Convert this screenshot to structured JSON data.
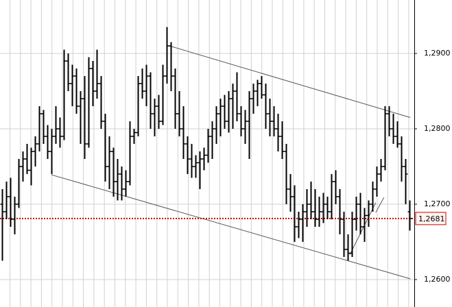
{
  "chart_data": {
    "type": "ohlc",
    "ylim": [
      1.25636,
      1.29709
    ],
    "yticks": [
      {
        "value": 1.26,
        "label": "1,2600"
      },
      {
        "value": 1.27,
        "label": "1,2700"
      },
      {
        "value": 1.28,
        "label": "1,2800"
      },
      {
        "value": 1.29,
        "label": "1,2900"
      }
    ],
    "grid": true,
    "color": "#000000",
    "ohlc": [
      [
        1.27,
        1.272,
        1.2625,
        1.269
      ],
      [
        1.269,
        1.273,
        1.268,
        1.271
      ],
      [
        1.271,
        1.2735,
        1.267,
        1.268
      ],
      [
        1.268,
        1.271,
        1.266,
        1.27
      ],
      [
        1.27,
        1.276,
        1.2695,
        1.275
      ],
      [
        1.275,
        1.277,
        1.273,
        1.276
      ],
      [
        1.276,
        1.278,
        1.274,
        1.2745
      ],
      [
        1.2745,
        1.2775,
        1.2725,
        1.277
      ],
      [
        1.277,
        1.279,
        1.275,
        1.278
      ],
      [
        1.278,
        1.283,
        1.277,
        1.282
      ],
      [
        1.282,
        1.2825,
        1.278,
        1.279
      ],
      [
        1.279,
        1.2805,
        1.276,
        1.277
      ],
      [
        1.277,
        1.28,
        1.274,
        1.279
      ],
      [
        1.279,
        1.283,
        1.278,
        1.28
      ],
      [
        1.28,
        1.2815,
        1.2775,
        1.279
      ],
      [
        1.279,
        1.2905,
        1.2785,
        1.289
      ],
      [
        1.289,
        1.29,
        1.285,
        1.286
      ],
      [
        1.286,
        1.2885,
        1.283,
        1.287
      ],
      [
        1.287,
        1.288,
        1.282,
        1.283
      ],
      [
        1.283,
        1.285,
        1.278,
        1.284
      ],
      [
        1.284,
        1.287,
        1.276,
        1.278
      ],
      [
        1.278,
        1.2895,
        1.2775,
        1.288
      ],
      [
        1.288,
        1.289,
        1.283,
        1.285
      ],
      [
        1.285,
        1.2905,
        1.284,
        1.286
      ],
      [
        1.286,
        1.287,
        1.28,
        1.281
      ],
      [
        1.281,
        1.282,
        1.273,
        1.275
      ],
      [
        1.275,
        1.279,
        1.272,
        1.277
      ],
      [
        1.277,
        1.2775,
        1.271,
        1.273
      ],
      [
        1.273,
        1.276,
        1.2705,
        1.274
      ],
      [
        1.274,
        1.275,
        1.2705,
        1.272
      ],
      [
        1.272,
        1.2745,
        1.271,
        1.273
      ],
      [
        1.273,
        1.281,
        1.2725,
        1.279
      ],
      [
        1.279,
        1.28,
        1.278,
        1.2795
      ],
      [
        1.2795,
        1.287,
        1.279,
        1.286
      ],
      [
        1.286,
        1.288,
        1.284,
        1.285
      ],
      [
        1.285,
        1.2885,
        1.283,
        1.287
      ],
      [
        1.287,
        1.2875,
        1.28,
        1.282
      ],
      [
        1.282,
        1.284,
        1.279,
        1.283
      ],
      [
        1.283,
        1.2845,
        1.28,
        1.281
      ],
      [
        1.281,
        1.2885,
        1.2805,
        1.287
      ],
      [
        1.287,
        1.2935,
        1.286,
        1.291
      ],
      [
        1.291,
        1.2915,
        1.285,
        1.287
      ],
      [
        1.287,
        1.288,
        1.28,
        1.282
      ],
      [
        1.282,
        1.285,
        1.279,
        1.28
      ],
      [
        1.28,
        1.283,
        1.276,
        1.278
      ],
      [
        1.278,
        1.279,
        1.274,
        1.276
      ],
      [
        1.276,
        1.278,
        1.2735,
        1.275
      ],
      [
        1.275,
        1.2765,
        1.2735,
        1.2755
      ],
      [
        1.2755,
        1.277,
        1.272,
        1.276
      ],
      [
        1.276,
        1.2775,
        1.2745,
        1.2765
      ],
      [
        1.2765,
        1.28,
        1.2755,
        1.279
      ],
      [
        1.279,
        1.281,
        1.276,
        1.28
      ],
      [
        1.28,
        1.283,
        1.278,
        1.282
      ],
      [
        1.282,
        1.284,
        1.279,
        1.283
      ],
      [
        1.283,
        1.2845,
        1.28,
        1.281
      ],
      [
        1.281,
        1.285,
        1.2795,
        1.284
      ],
      [
        1.284,
        1.286,
        1.28,
        1.285
      ],
      [
        1.285,
        1.2875,
        1.281,
        1.282
      ],
      [
        1.282,
        1.283,
        1.279,
        1.28
      ],
      [
        1.28,
        1.2825,
        1.278,
        1.281
      ],
      [
        1.281,
        1.285,
        1.276,
        1.284
      ],
      [
        1.284,
        1.286,
        1.282,
        1.285
      ],
      [
        1.285,
        1.2865,
        1.283,
        1.286
      ],
      [
        1.286,
        1.287,
        1.284,
        1.2845
      ],
      [
        1.2845,
        1.286,
        1.28,
        1.282
      ],
      [
        1.282,
        1.284,
        1.279,
        1.281
      ],
      [
        1.281,
        1.283,
        1.279,
        1.28
      ],
      [
        1.28,
        1.282,
        1.277,
        1.279
      ],
      [
        1.279,
        1.281,
        1.276,
        1.277
      ],
      [
        1.277,
        1.278,
        1.27,
        1.272
      ],
      [
        1.272,
        1.274,
        1.269,
        1.271
      ],
      [
        1.271,
        1.2725,
        1.265,
        1.267
      ],
      [
        1.267,
        1.269,
        1.2655,
        1.268
      ],
      [
        1.268,
        1.27,
        1.265,
        1.269
      ],
      [
        1.269,
        1.272,
        1.267,
        1.27
      ],
      [
        1.27,
        1.273,
        1.268,
        1.269
      ],
      [
        1.269,
        1.272,
        1.267,
        1.268
      ],
      [
        1.268,
        1.271,
        1.267,
        1.269
      ],
      [
        1.269,
        1.2715,
        1.2675,
        1.27
      ],
      [
        1.27,
        1.271,
        1.268,
        1.269
      ],
      [
        1.269,
        1.274,
        1.268,
        1.273
      ],
      [
        1.273,
        1.2745,
        1.27,
        1.271
      ],
      [
        1.271,
        1.272,
        1.266,
        1.268
      ],
      [
        1.268,
        1.269,
        1.263,
        1.264
      ],
      [
        1.264,
        1.266,
        1.2625,
        1.2635
      ],
      [
        1.2635,
        1.269,
        1.263,
        1.268
      ],
      [
        1.268,
        1.271,
        1.2665,
        1.27
      ],
      [
        1.27,
        1.2715,
        1.266,
        1.267
      ],
      [
        1.267,
        1.2695,
        1.265,
        1.2685
      ],
      [
        1.2685,
        1.2705,
        1.267,
        1.27
      ],
      [
        1.27,
        1.273,
        1.269,
        1.272
      ],
      [
        1.272,
        1.275,
        1.271,
        1.274
      ],
      [
        1.274,
        1.276,
        1.273,
        1.275
      ],
      [
        1.275,
        1.283,
        1.2745,
        1.282
      ],
      [
        1.282,
        1.283,
        1.279,
        1.28
      ],
      [
        1.28,
        1.282,
        1.278,
        1.279
      ],
      [
        1.279,
        1.281,
        1.2775,
        1.278
      ],
      [
        1.278,
        1.279,
        1.273,
        1.275
      ],
      [
        1.275,
        1.276,
        1.27,
        1.274
      ],
      [
        1.269,
        1.2705,
        1.2665,
        1.2681
      ]
    ],
    "trendlines": [
      {
        "from": [
          40.7,
          1.291
        ],
        "to": [
          99.2,
          1.2815
        ]
      },
      {
        "from": [
          12,
          1.2739
        ],
        "to": [
          99.2,
          1.2601
        ]
      },
      {
        "from": [
          84.5,
          1.2633
        ],
        "to": [
          90.8,
          1.2702
        ]
      },
      {
        "from": [
          90.8,
          1.2689
        ],
        "to": [
          92.8,
          1.2709
        ]
      }
    ],
    "last_price": {
      "value": 1.2681,
      "label": "1,2681",
      "color": "#cc0000"
    }
  }
}
